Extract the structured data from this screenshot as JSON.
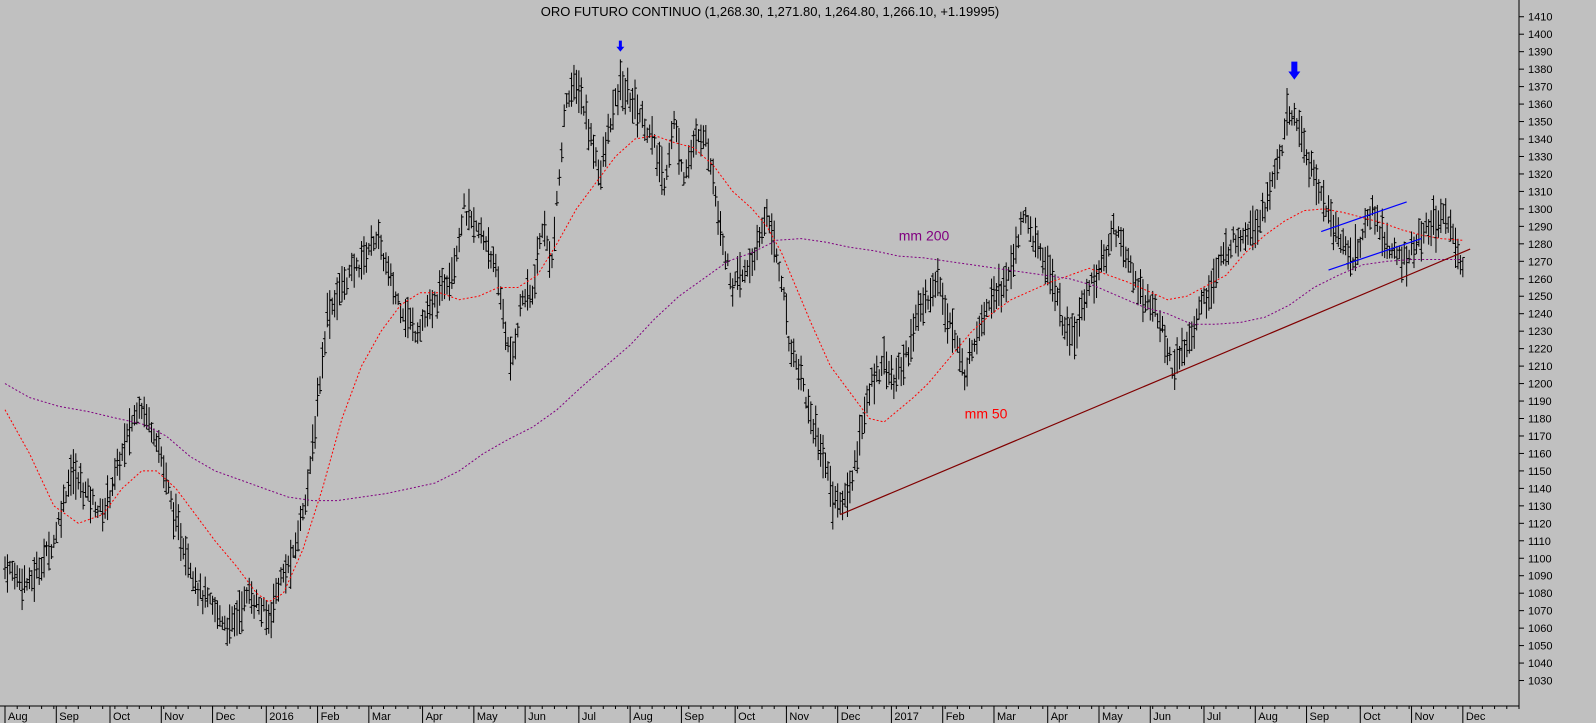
{
  "chart_data": {
    "type": "line",
    "title": "ORO FUTURO CONTINUO (1,268.30, 1,271.80, 1,264.80, 1,266.10, +1.19995)",
    "ylim": [
      1020,
      1415
    ],
    "y_ticks": [
      1030,
      1040,
      1050,
      1060,
      1070,
      1080,
      1090,
      1100,
      1110,
      1120,
      1130,
      1140,
      1150,
      1160,
      1170,
      1180,
      1190,
      1200,
      1210,
      1220,
      1230,
      1240,
      1250,
      1260,
      1270,
      1280,
      1290,
      1300,
      1310,
      1320,
      1330,
      1340,
      1350,
      1360,
      1370,
      1380,
      1390,
      1400,
      1410
    ],
    "x_labels": [
      "Aug",
      "Sep",
      "Oct",
      "Nov",
      "Dec",
      "2016",
      "Feb",
      "Mar",
      "Apr",
      "May",
      "Jun",
      "Jul",
      "Aug",
      "Sep",
      "Oct",
      "Nov",
      "Dec",
      "2017",
      "Feb",
      "Mar",
      "Apr",
      "May",
      "Jun",
      "Jul",
      "Aug",
      "Sep",
      "Oct",
      "Nov",
      "Dec"
    ],
    "x_label_index": [
      0,
      21,
      43,
      64,
      85,
      107,
      128,
      149,
      171,
      192,
      213,
      235,
      256,
      277,
      299,
      320,
      341,
      363,
      384,
      405,
      427,
      448,
      469,
      491,
      512,
      533,
      555,
      576,
      597
    ],
    "grid": false,
    "price_keypoints": [
      [
        0,
        1095
      ],
      [
        10,
        1085
      ],
      [
        20,
        1110
      ],
      [
        27,
        1150
      ],
      [
        40,
        1125
      ],
      [
        48,
        1160
      ],
      [
        55,
        1190
      ],
      [
        62,
        1170
      ],
      [
        70,
        1120
      ],
      [
        80,
        1080
      ],
      [
        92,
        1060
      ],
      [
        100,
        1080
      ],
      [
        108,
        1065
      ],
      [
        112,
        1085
      ],
      [
        118,
        1100
      ],
      [
        125,
        1150
      ],
      [
        132,
        1240
      ],
      [
        140,
        1260
      ],
      [
        146,
        1270
      ],
      [
        152,
        1285
      ],
      [
        160,
        1250
      ],
      [
        168,
        1230
      ],
      [
        176,
        1245
      ],
      [
        184,
        1270
      ],
      [
        188,
        1300
      ],
      [
        192,
        1290
      ],
      [
        198,
        1280
      ],
      [
        203,
        1250
      ],
      [
        207,
        1210
      ],
      [
        212,
        1250
      ],
      [
        216,
        1250
      ],
      [
        220,
        1290
      ],
      [
        224,
        1270
      ],
      [
        230,
        1365
      ],
      [
        235,
        1370
      ],
      [
        240,
        1340
      ],
      [
        244,
        1320
      ],
      [
        248,
        1350
      ],
      [
        252,
        1370
      ],
      [
        258,
        1360
      ],
      [
        265,
        1340
      ],
      [
        270,
        1315
      ],
      [
        274,
        1350
      ],
      [
        278,
        1320
      ],
      [
        282,
        1335
      ],
      [
        286,
        1345
      ],
      [
        290,
        1320
      ],
      [
        294,
        1280
      ],
      [
        298,
        1255
      ],
      [
        304,
        1265
      ],
      [
        309,
        1280
      ],
      [
        312,
        1300
      ],
      [
        315,
        1280
      ],
      [
        318,
        1260
      ],
      [
        321,
        1225
      ],
      [
        326,
        1205
      ],
      [
        330,
        1180
      ],
      [
        335,
        1160
      ],
      [
        339,
        1135
      ],
      [
        342,
        1130
      ],
      [
        346,
        1140
      ],
      [
        350,
        1170
      ],
      [
        355,
        1200
      ],
      [
        360,
        1215
      ],
      [
        364,
        1200
      ],
      [
        370,
        1220
      ],
      [
        374,
        1240
      ],
      [
        378,
        1250
      ],
      [
        382,
        1260
      ],
      [
        386,
        1240
      ],
      [
        390,
        1220
      ],
      [
        393,
        1205
      ],
      [
        398,
        1230
      ],
      [
        402,
        1245
      ],
      [
        406,
        1255
      ],
      [
        410,
        1255
      ],
      [
        414,
        1280
      ],
      [
        418,
        1295
      ],
      [
        422,
        1280
      ],
      [
        426,
        1270
      ],
      [
        430,
        1255
      ],
      [
        434,
        1230
      ],
      [
        438,
        1225
      ],
      [
        442,
        1250
      ],
      [
        446,
        1260
      ],
      [
        450,
        1270
      ],
      [
        454,
        1290
      ],
      [
        458,
        1280
      ],
      [
        462,
        1260
      ],
      [
        466,
        1250
      ],
      [
        470,
        1245
      ],
      [
        474,
        1230
      ],
      [
        478,
        1210
      ],
      [
        482,
        1215
      ],
      [
        486,
        1230
      ],
      [
        490,
        1245
      ],
      [
        494,
        1255
      ],
      [
        498,
        1270
      ],
      [
        502,
        1280
      ],
      [
        506,
        1285
      ],
      [
        510,
        1290
      ],
      [
        514,
        1295
      ],
      [
        518,
        1310
      ],
      [
        522,
        1330
      ],
      [
        525,
        1350
      ],
      [
        528,
        1355
      ],
      [
        532,
        1335
      ],
      [
        536,
        1320
      ],
      [
        540,
        1305
      ],
      [
        544,
        1290
      ],
      [
        548,
        1280
      ],
      [
        552,
        1270
      ],
      [
        556,
        1285
      ],
      [
        560,
        1300
      ],
      [
        564,
        1285
      ],
      [
        568,
        1275
      ],
      [
        572,
        1270
      ],
      [
        576,
        1275
      ],
      [
        580,
        1285
      ],
      [
        584,
        1290
      ],
      [
        588,
        1295
      ],
      [
        592,
        1290
      ],
      [
        595,
        1275
      ],
      [
        597,
        1266
      ]
    ],
    "series": [
      {
        "name": "mm 50",
        "color": "#ff0000",
        "points": [
          [
            0,
            1185
          ],
          [
            10,
            1160
          ],
          [
            20,
            1130
          ],
          [
            30,
            1120
          ],
          [
            40,
            1125
          ],
          [
            48,
            1140
          ],
          [
            56,
            1150
          ],
          [
            62,
            1150
          ],
          [
            70,
            1140
          ],
          [
            78,
            1125
          ],
          [
            86,
            1110
          ],
          [
            95,
            1095
          ],
          [
            103,
            1080
          ],
          [
            108,
            1075
          ],
          [
            114,
            1080
          ],
          [
            122,
            1105
          ],
          [
            130,
            1140
          ],
          [
            138,
            1180
          ],
          [
            146,
            1210
          ],
          [
            154,
            1230
          ],
          [
            162,
            1245
          ],
          [
            170,
            1252
          ],
          [
            178,
            1252
          ],
          [
            186,
            1248
          ],
          [
            194,
            1250
          ],
          [
            202,
            1255
          ],
          [
            210,
            1255
          ],
          [
            218,
            1262
          ],
          [
            226,
            1280
          ],
          [
            234,
            1300
          ],
          [
            242,
            1315
          ],
          [
            250,
            1330
          ],
          [
            258,
            1340
          ],
          [
            266,
            1342
          ],
          [
            274,
            1338
          ],
          [
            282,
            1335
          ],
          [
            290,
            1325
          ],
          [
            298,
            1310
          ],
          [
            306,
            1300
          ],
          [
            312,
            1290
          ],
          [
            318,
            1275
          ],
          [
            324,
            1255
          ],
          [
            330,
            1235
          ],
          [
            338,
            1210
          ],
          [
            346,
            1195
          ],
          [
            354,
            1180
          ],
          [
            360,
            1178
          ],
          [
            366,
            1185
          ],
          [
            372,
            1192
          ],
          [
            378,
            1200
          ],
          [
            384,
            1210
          ],
          [
            390,
            1220
          ],
          [
            396,
            1230
          ],
          [
            404,
            1240
          ],
          [
            412,
            1248
          ],
          [
            420,
            1253
          ],
          [
            428,
            1258
          ],
          [
            436,
            1262
          ],
          [
            444,
            1266
          ],
          [
            452,
            1262
          ],
          [
            460,
            1258
          ],
          [
            468,
            1253
          ],
          [
            476,
            1248
          ],
          [
            484,
            1250
          ],
          [
            492,
            1256
          ],
          [
            500,
            1262
          ],
          [
            508,
            1275
          ],
          [
            516,
            1285
          ],
          [
            524,
            1293
          ],
          [
            532,
            1299
          ],
          [
            540,
            1300
          ],
          [
            548,
            1298
          ],
          [
            556,
            1295
          ],
          [
            564,
            1292
          ],
          [
            572,
            1288
          ],
          [
            580,
            1285
          ],
          [
            588,
            1283
          ],
          [
            597,
            1282
          ]
        ]
      },
      {
        "name": "mm 200",
        "color": "#800080",
        "points": [
          [
            0,
            1200
          ],
          [
            10,
            1192
          ],
          [
            22,
            1187
          ],
          [
            34,
            1184
          ],
          [
            46,
            1180
          ],
          [
            56,
            1177
          ],
          [
            66,
            1170
          ],
          [
            76,
            1158
          ],
          [
            86,
            1150
          ],
          [
            96,
            1145
          ],
          [
            106,
            1140
          ],
          [
            116,
            1135
          ],
          [
            126,
            1133
          ],
          [
            136,
            1133
          ],
          [
            146,
            1135
          ],
          [
            156,
            1137
          ],
          [
            166,
            1140
          ],
          [
            176,
            1143
          ],
          [
            186,
            1150
          ],
          [
            196,
            1160
          ],
          [
            206,
            1168
          ],
          [
            216,
            1175
          ],
          [
            226,
            1185
          ],
          [
            236,
            1198
          ],
          [
            246,
            1210
          ],
          [
            256,
            1222
          ],
          [
            266,
            1237
          ],
          [
            276,
            1250
          ],
          [
            286,
            1260
          ],
          [
            296,
            1270
          ],
          [
            306,
            1275
          ],
          [
            316,
            1282
          ],
          [
            326,
            1283
          ],
          [
            336,
            1281
          ],
          [
            346,
            1278
          ],
          [
            356,
            1276
          ],
          [
            366,
            1273
          ],
          [
            376,
            1272
          ],
          [
            386,
            1270
          ],
          [
            396,
            1268
          ],
          [
            406,
            1266
          ],
          [
            416,
            1264
          ],
          [
            426,
            1262
          ],
          [
            436,
            1260
          ],
          [
            446,
            1256
          ],
          [
            456,
            1250
          ],
          [
            466,
            1244
          ],
          [
            476,
            1240
          ],
          [
            486,
            1234
          ],
          [
            496,
            1234
          ],
          [
            506,
            1235
          ],
          [
            516,
            1238
          ],
          [
            526,
            1245
          ],
          [
            536,
            1255
          ],
          [
            546,
            1262
          ],
          [
            556,
            1268
          ],
          [
            566,
            1270
          ],
          [
            576,
            1271
          ],
          [
            586,
            1271
          ],
          [
            597,
            1271
          ]
        ]
      }
    ],
    "annotations": [
      {
        "text": "mm 200",
        "color": "#800080",
        "x": 366,
        "y": 1282
      },
      {
        "text": "mm 50",
        "color": "#ff0000",
        "x": 393,
        "y": 1180
      }
    ],
    "trendline": {
      "color": "#800000",
      "from": [
        342,
        1125
      ],
      "to": [
        600,
        1277
      ]
    },
    "channel": {
      "color": "#0000ff",
      "upper": [
        [
          539,
          1287
        ],
        [
          574,
          1304
        ]
      ],
      "lower": [
        [
          542,
          1265
        ],
        [
          580,
          1283
        ]
      ]
    },
    "arrows": [
      {
        "x": 252,
        "y": 1390,
        "size": "small",
        "color": "#0000ff"
      },
      {
        "x": 528,
        "y": 1374,
        "size": "large",
        "color": "#0000ff"
      }
    ]
  }
}
